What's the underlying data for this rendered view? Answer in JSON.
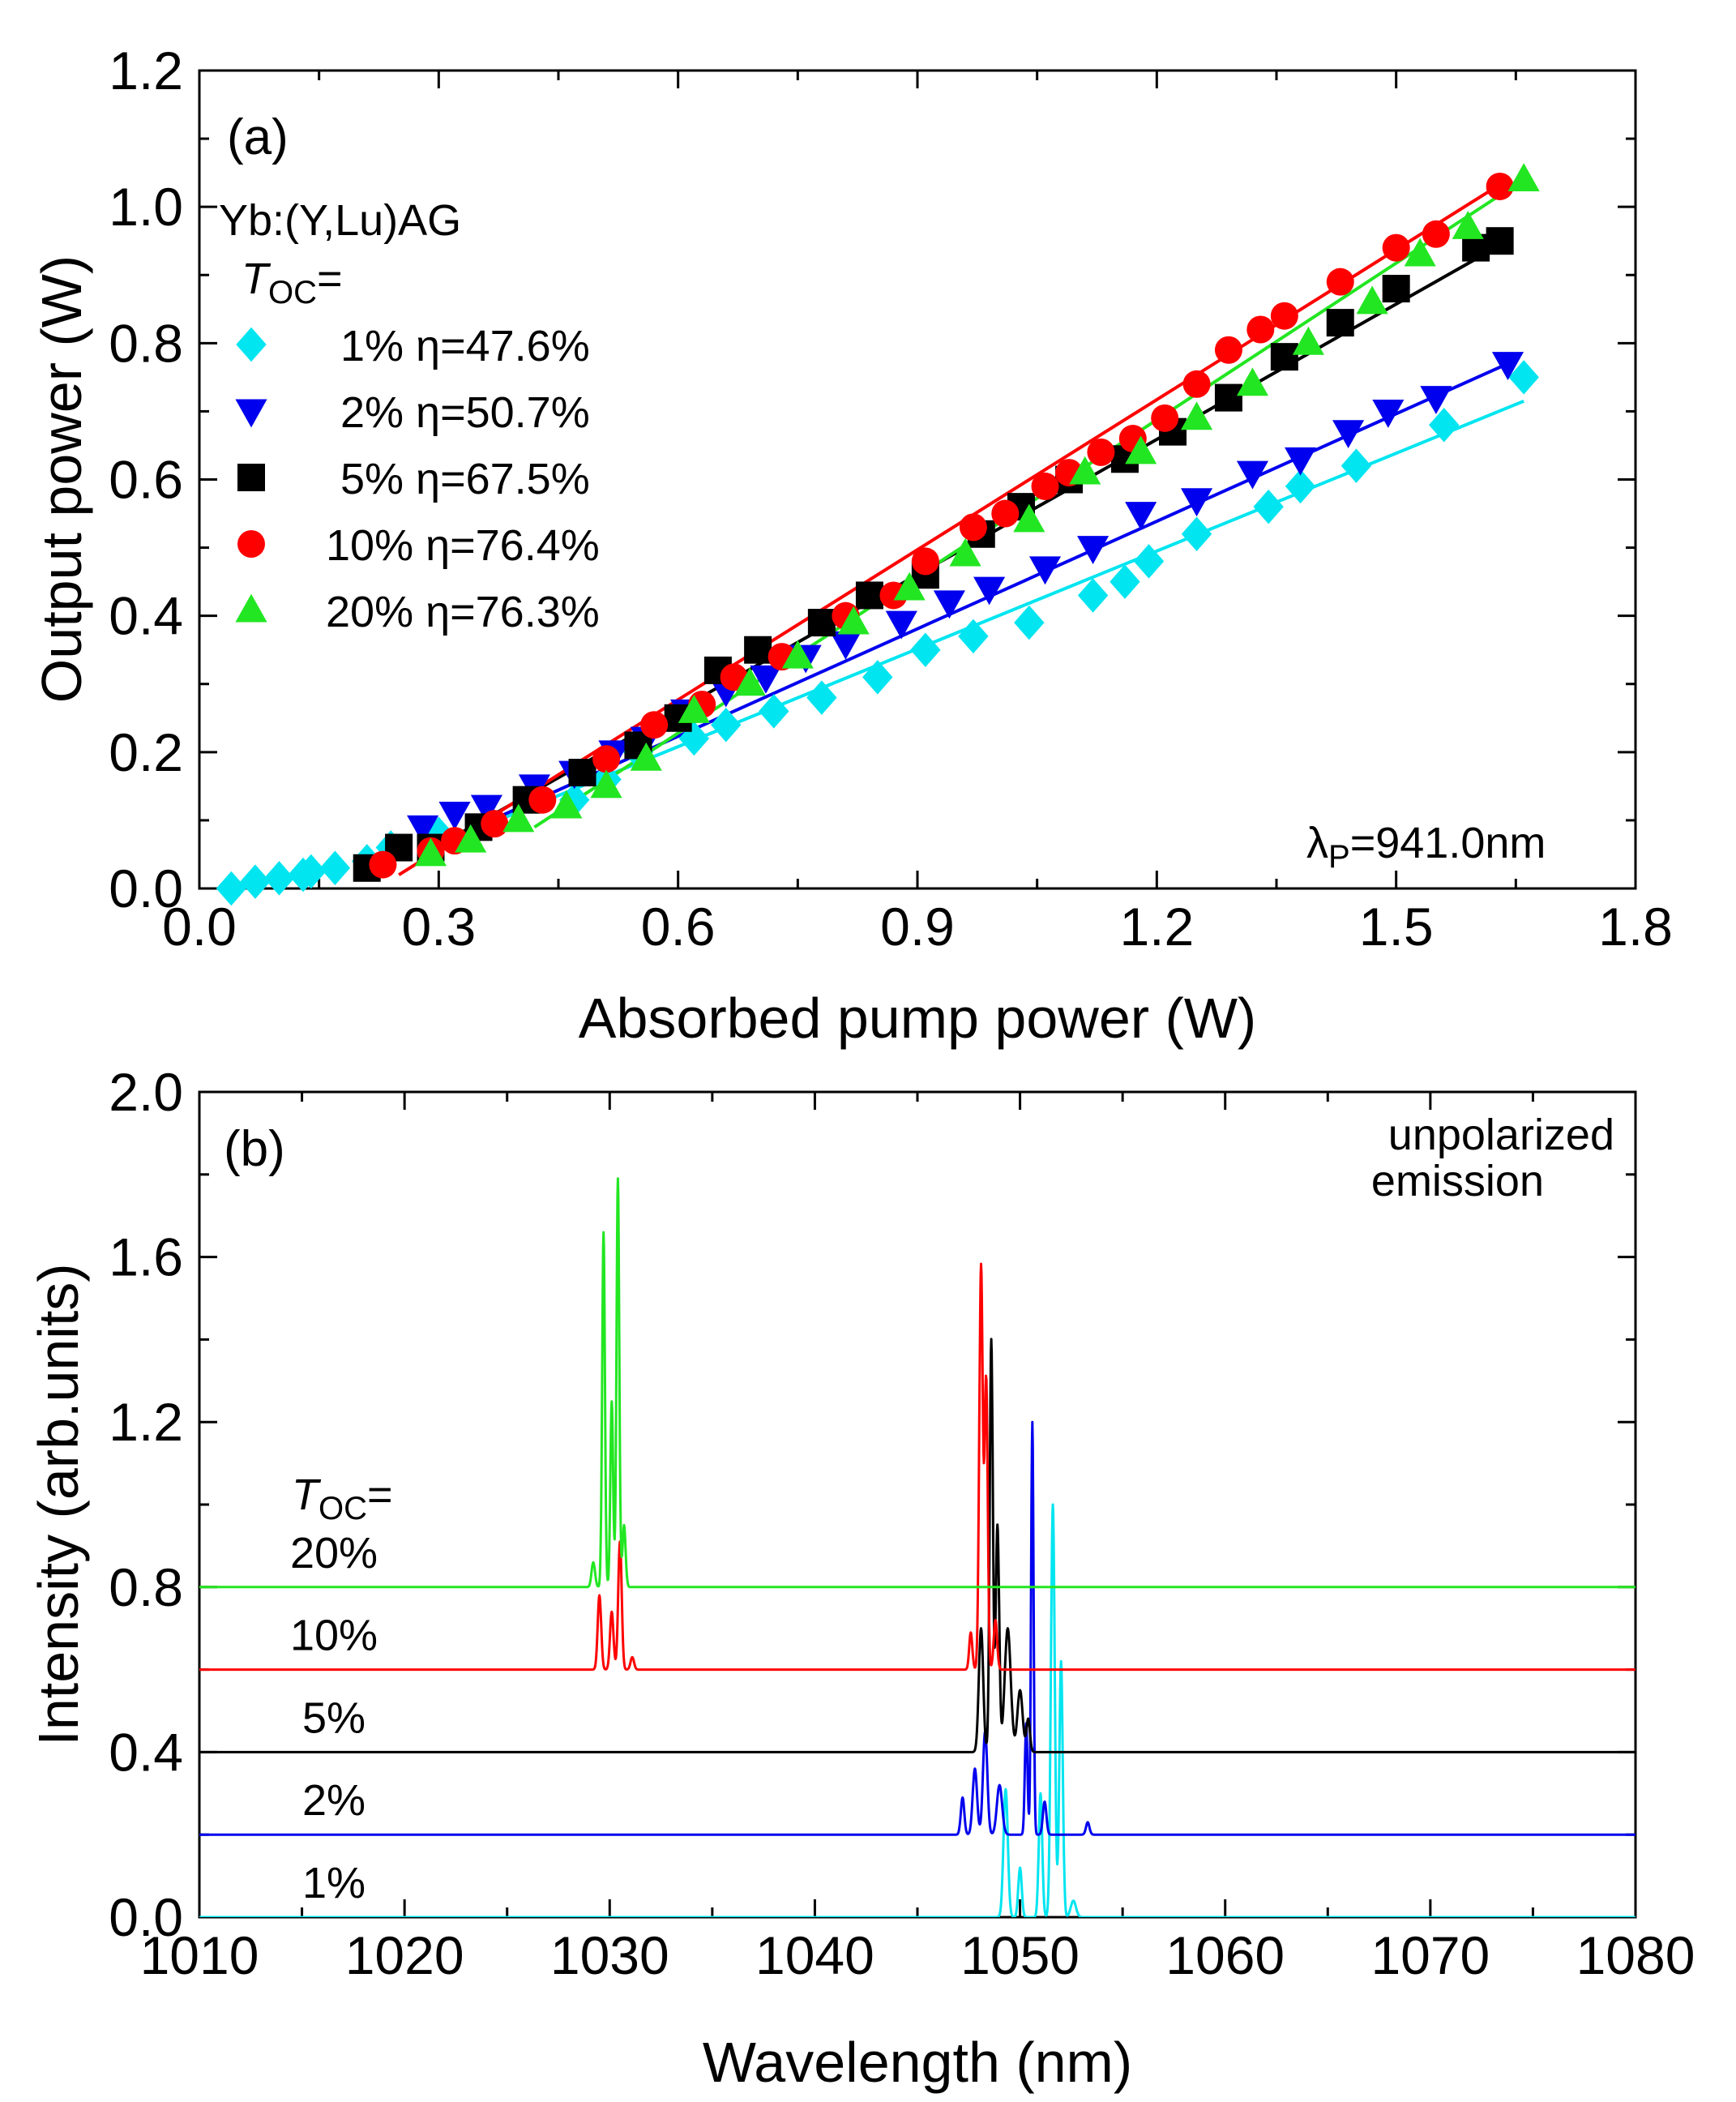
{
  "colors": {
    "cyan": "#00e5f0",
    "blue": "#0000ee",
    "black": "#000000",
    "red": "#ff0000",
    "green": "#22e622"
  },
  "chart_data": [
    {
      "type": "scatter",
      "panel_label": "(a)",
      "xlabel": "Absorbed pump power (W)",
      "ylabel": "Output power (W)",
      "xlim": [
        0.0,
        1.8
      ],
      "ylim": [
        0.0,
        1.2
      ],
      "xticks": [
        "0.0",
        "0.3",
        "0.6",
        "0.9",
        "1.2",
        "1.5",
        "1.8"
      ],
      "yticks": [
        "0.0",
        "0.2",
        "0.4",
        "0.6",
        "0.8",
        "1.0",
        "1.2"
      ],
      "crystal_label": "Yb:(Y,Lu)AG",
      "legend_title_sym": "T",
      "legend_title_sub": "OC",
      "legend_title_eq": "=",
      "wavelength_ann_sym": "λ",
      "wavelength_ann_sub": "P",
      "wavelength_ann_val": "=941.0nm",
      "series": [
        {
          "name": "1%",
          "legend_label": "1% η=47.6%",
          "marker": "diamond",
          "color": "#00e5f0",
          "x": [
            0.04,
            0.07,
            0.1,
            0.13,
            0.14,
            0.17,
            0.21,
            0.24,
            0.3,
            0.47,
            0.51,
            0.55,
            0.62,
            0.66,
            0.72,
            0.78,
            0.85,
            0.91,
            0.97,
            1.04,
            1.12,
            1.16,
            1.19,
            1.25,
            1.34,
            1.38,
            1.45,
            1.56,
            1.66
          ],
          "y": [
            0.0,
            0.01,
            0.015,
            0.02,
            0.025,
            0.03,
            0.04,
            0.06,
            0.08,
            0.13,
            0.16,
            0.2,
            0.22,
            0.24,
            0.26,
            0.28,
            0.31,
            0.35,
            0.37,
            0.39,
            0.43,
            0.45,
            0.48,
            0.52,
            0.56,
            0.59,
            0.62,
            0.68,
            0.75
          ],
          "fit": [
            [
              0.28,
              0.055
            ],
            [
              1.66,
              0.715
            ]
          ]
        },
        {
          "name": "2%",
          "legend_label": "2% η=50.7%",
          "marker": "triangle-down",
          "color": "#0000ee",
          "x": [
            0.28,
            0.32,
            0.36,
            0.42,
            0.47,
            0.52,
            0.56,
            0.61,
            0.66,
            0.71,
            0.76,
            0.81,
            0.88,
            0.94,
            0.99,
            1.06,
            1.12,
            1.18,
            1.25,
            1.32,
            1.38,
            1.44,
            1.49,
            1.55,
            1.64
          ],
          "y": [
            0.09,
            0.11,
            0.12,
            0.15,
            0.17,
            0.2,
            0.22,
            0.26,
            0.29,
            0.31,
            0.34,
            0.36,
            0.39,
            0.42,
            0.44,
            0.47,
            0.5,
            0.55,
            0.57,
            0.61,
            0.63,
            0.67,
            0.7,
            0.72,
            0.77
          ],
          "fit": [
            [
              0.28,
              0.055
            ],
            [
              1.64,
              0.77
            ]
          ]
        },
        {
          "name": "5%",
          "legend_label": "5% η=67.5%",
          "marker": "square",
          "color": "#000000",
          "x": [
            0.21,
            0.25,
            0.29,
            0.35,
            0.41,
            0.48,
            0.55,
            0.6,
            0.65,
            0.7,
            0.78,
            0.84,
            0.91,
            0.98,
            1.03,
            1.09,
            1.16,
            1.22,
            1.29,
            1.36,
            1.43,
            1.5,
            1.6,
            1.63
          ],
          "y": [
            0.03,
            0.06,
            0.06,
            0.09,
            0.13,
            0.17,
            0.21,
            0.25,
            0.32,
            0.35,
            0.39,
            0.43,
            0.46,
            0.52,
            0.56,
            0.6,
            0.63,
            0.67,
            0.72,
            0.78,
            0.83,
            0.88,
            0.94,
            0.95
          ],
          "fit": [
            [
              0.28,
              0.05
            ],
            [
              1.64,
              0.95
            ]
          ]
        },
        {
          "name": "10%",
          "legend_label": "10% η=76.4%",
          "marker": "circle",
          "color": "#ff0000",
          "x": [
            0.23,
            0.29,
            0.32,
            0.37,
            0.43,
            0.51,
            0.57,
            0.63,
            0.67,
            0.73,
            0.81,
            0.87,
            0.91,
            0.97,
            1.01,
            1.06,
            1.09,
            1.13,
            1.17,
            1.21,
            1.25,
            1.29,
            1.33,
            1.36,
            1.43,
            1.5,
            1.55,
            1.63
          ],
          "y": [
            0.035,
            0.055,
            0.07,
            0.095,
            0.13,
            0.19,
            0.24,
            0.27,
            0.31,
            0.34,
            0.4,
            0.43,
            0.48,
            0.53,
            0.55,
            0.59,
            0.61,
            0.64,
            0.66,
            0.69,
            0.74,
            0.79,
            0.82,
            0.84,
            0.89,
            0.94,
            0.96,
            1.03
          ],
          "fit": [
            [
              0.25,
              0.02
            ],
            [
              1.64,
              1.04
            ]
          ]
        },
        {
          "name": "20%",
          "legend_label": "20% η=76.3%",
          "marker": "triangle-up",
          "color": "#22e622",
          "x": [
            0.29,
            0.34,
            0.4,
            0.46,
            0.51,
            0.56,
            0.62,
            0.69,
            0.75,
            0.82,
            0.89,
            0.96,
            1.04,
            1.11,
            1.18,
            1.25,
            1.32,
            1.39,
            1.47,
            1.53,
            1.59,
            1.66
          ],
          "y": [
            0.05,
            0.07,
            0.1,
            0.12,
            0.15,
            0.19,
            0.26,
            0.3,
            0.34,
            0.39,
            0.44,
            0.49,
            0.54,
            0.61,
            0.64,
            0.69,
            0.74,
            0.8,
            0.86,
            0.93,
            0.97,
            1.04
          ],
          "fit": [
            [
              0.42,
              0.09
            ],
            [
              1.66,
              1.04
            ]
          ]
        }
      ]
    },
    {
      "type": "line",
      "panel_label": "(b)",
      "xlabel": "Wavelength (nm)",
      "ylabel": "Intensity (arb.units)",
      "xlim": [
        1010,
        1080
      ],
      "ylim": [
        0.0,
        2.0
      ],
      "xticks": [
        "1010",
        "1020",
        "1030",
        "1040",
        "1050",
        "1060",
        "1070",
        "1080"
      ],
      "yticks": [
        "0.0",
        "0.4",
        "0.8",
        "1.2",
        "1.6",
        "2.0"
      ],
      "annotation_line1": "unpolarized",
      "annotation_line2": "emission",
      "legend_title_sym": "T",
      "legend_title_sub": "OC",
      "legend_title_eq": "=",
      "series": [
        {
          "name": "1%",
          "label": "1%",
          "color": "#00e5f0",
          "baseline": 0.0,
          "peaks": [
            {
              "center": 1049.3,
              "height": 0.31,
              "width": 0.25
            },
            {
              "center": 1050.0,
              "height": 0.12,
              "width": 0.2
            },
            {
              "center": 1051.0,
              "height": 0.3,
              "width": 0.2
            },
            {
              "center": 1051.6,
              "height": 1.0,
              "width": 0.22
            },
            {
              "center": 1052.0,
              "height": 0.62,
              "width": 0.2
            },
            {
              "center": 1052.6,
              "height": 0.04,
              "width": 0.3
            }
          ]
        },
        {
          "name": "2%",
          "label": "2%",
          "color": "#0000ee",
          "baseline": 0.2,
          "peaks": [
            {
              "center": 1047.2,
              "height": 0.09,
              "width": 0.2
            },
            {
              "center": 1047.8,
              "height": 0.16,
              "width": 0.25
            },
            {
              "center": 1048.3,
              "height": 0.25,
              "width": 0.25
            },
            {
              "center": 1049.0,
              "height": 0.12,
              "width": 0.3
            },
            {
              "center": 1050.3,
              "height": 0.27,
              "width": 0.15
            },
            {
              "center": 1050.6,
              "height": 1.0,
              "width": 0.14
            },
            {
              "center": 1051.2,
              "height": 0.08,
              "width": 0.2
            },
            {
              "center": 1053.3,
              "height": 0.03,
              "width": 0.2
            }
          ]
        },
        {
          "name": "5%",
          "label": "5%",
          "color": "#000000",
          "baseline": 0.4,
          "peaks": [
            {
              "center": 1048.1,
              "height": 0.3,
              "width": 0.25
            },
            {
              "center": 1048.6,
              "height": 1.0,
              "width": 0.18
            },
            {
              "center": 1048.9,
              "height": 0.55,
              "width": 0.2
            },
            {
              "center": 1049.4,
              "height": 0.3,
              "width": 0.35
            },
            {
              "center": 1050.0,
              "height": 0.15,
              "width": 0.3
            },
            {
              "center": 1050.4,
              "height": 0.08,
              "width": 0.2
            }
          ]
        },
        {
          "name": "10%",
          "label": "10%",
          "color": "#ff0000",
          "baseline": 0.6,
          "peaks": [
            {
              "center": 1029.5,
              "height": 0.18,
              "width": 0.2
            },
            {
              "center": 1030.1,
              "height": 0.14,
              "width": 0.2
            },
            {
              "center": 1030.5,
              "height": 0.31,
              "width": 0.2
            },
            {
              "center": 1031.1,
              "height": 0.03,
              "width": 0.2
            },
            {
              "center": 1047.6,
              "height": 0.09,
              "width": 0.18
            },
            {
              "center": 1048.1,
              "height": 0.98,
              "width": 0.2
            },
            {
              "center": 1048.35,
              "height": 0.7,
              "width": 0.18
            },
            {
              "center": 1048.8,
              "height": 0.12,
              "width": 0.2
            }
          ]
        },
        {
          "name": "20%",
          "label": "20%",
          "color": "#22e622",
          "baseline": 0.8,
          "peaks": [
            {
              "center": 1029.2,
              "height": 0.06,
              "width": 0.2
            },
            {
              "center": 1029.7,
              "height": 0.86,
              "width": 0.16
            },
            {
              "center": 1030.1,
              "height": 0.45,
              "width": 0.16
            },
            {
              "center": 1030.4,
              "height": 0.99,
              "width": 0.16
            },
            {
              "center": 1030.7,
              "height": 0.15,
              "width": 0.18
            }
          ]
        }
      ]
    }
  ]
}
